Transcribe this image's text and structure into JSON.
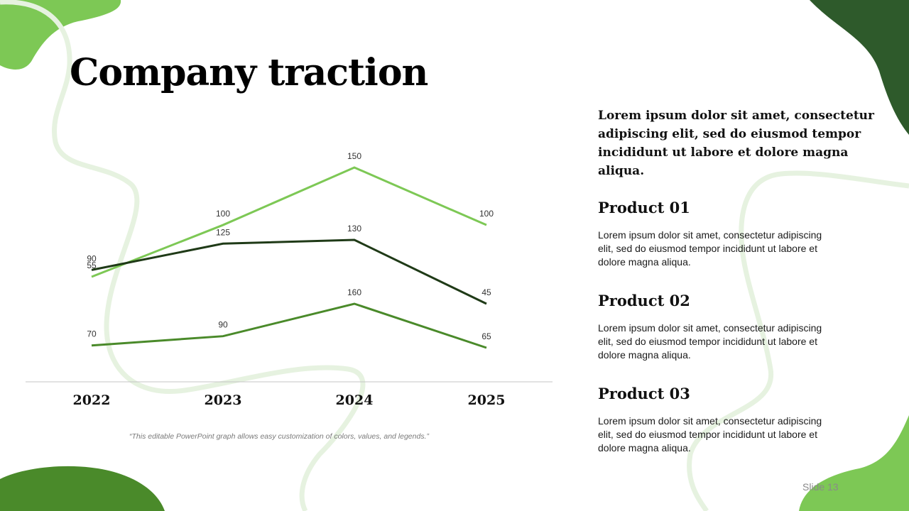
{
  "slide": {
    "title": "Company traction",
    "caption": "“This editable PowerPoint graph allows easy customization of colors, values, and legends.”",
    "lead_text": "Lorem ipsum dolor sit amet, consectetur adipiscing elit, sed do eiusmod tempor incididunt ut labore et dolore magna aliqua.",
    "products": [
      {
        "title": "Product 01",
        "text": "Lorem ipsum dolor sit amet, consectetur adipiscing elit, sed do eiusmod tempor incididunt ut labore et dolore magna aliqua."
      },
      {
        "title": "Product 02",
        "text": "Lorem ipsum dolor sit amet, consectetur adipiscing elit, sed do eiusmod tempor incididunt ut labore et dolore magna aliqua."
      },
      {
        "title": "Product 03",
        "text": "Lorem ipsum dolor sit amet, consectetur adipiscing elit, sed do eiusmod tempor incididunt ut labore et dolore magna aliqua."
      }
    ],
    "slide_number": "Slide 13"
  },
  "colors": {
    "light_green": "#7dc855",
    "dark_green": "#1f3a17",
    "mid_green": "#4a8a2a",
    "forest_green": "#2e5a2b"
  },
  "chart_data": {
    "type": "line",
    "categories": [
      "2022",
      "2023",
      "2024",
      "2025"
    ],
    "series": [
      {
        "values": [
          55,
          100,
          150,
          100
        ],
        "color": "#7dc855"
      },
      {
        "values": [
          90,
          125,
          130,
          45
        ],
        "color": "#1f3a17"
      },
      {
        "values": [
          70,
          90,
          160,
          65
        ],
        "color": "#4a8a2a"
      }
    ],
    "legend": "none",
    "grid": false
  }
}
